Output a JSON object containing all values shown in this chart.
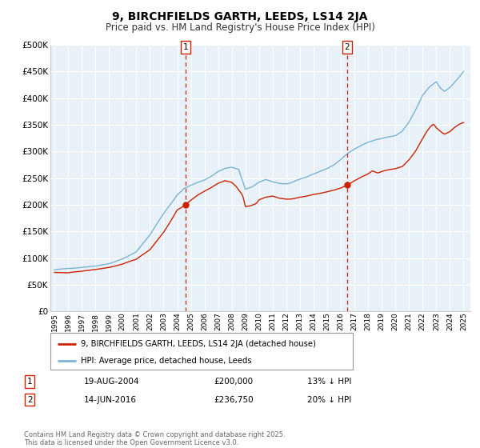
{
  "title": "9, BIRCHFIELDS GARTH, LEEDS, LS14 2JA",
  "subtitle": "Price paid vs. HM Land Registry's House Price Index (HPI)",
  "ylim": [
    0,
    500000
  ],
  "yticks": [
    0,
    50000,
    100000,
    150000,
    200000,
    250000,
    300000,
    350000,
    400000,
    450000,
    500000
  ],
  "ytick_labels": [
    "£0",
    "£50K",
    "£100K",
    "£150K",
    "£200K",
    "£250K",
    "£300K",
    "£350K",
    "£400K",
    "£450K",
    "£500K"
  ],
  "hpi_color": "#7ab3d4",
  "price_color": "#cc2200",
  "vline_color": "#cc2200",
  "bg_color": "#e8f0f8",
  "grid_color": "#ffffff",
  "transaction1_date": "19-AUG-2004",
  "transaction1_price": 200000,
  "transaction1_hpi_diff": "13% ↓ HPI",
  "transaction2_date": "14-JUN-2016",
  "transaction2_price": 236750,
  "transaction2_hpi_diff": "20% ↓ HPI",
  "legend_label_price": "9, BIRCHFIELDS GARTH, LEEDS, LS14 2JA (detached house)",
  "legend_label_hpi": "HPI: Average price, detached house, Leeds",
  "footer": "Contains HM Land Registry data © Crown copyright and database right 2025.\nThis data is licensed under the Open Government Licence v3.0.",
  "vline1_x": 2004.63,
  "vline2_x": 2016.45,
  "marker1_y": 200000,
  "marker2_y": 236750,
  "xlim_left": 1994.7,
  "xlim_right": 2025.5
}
